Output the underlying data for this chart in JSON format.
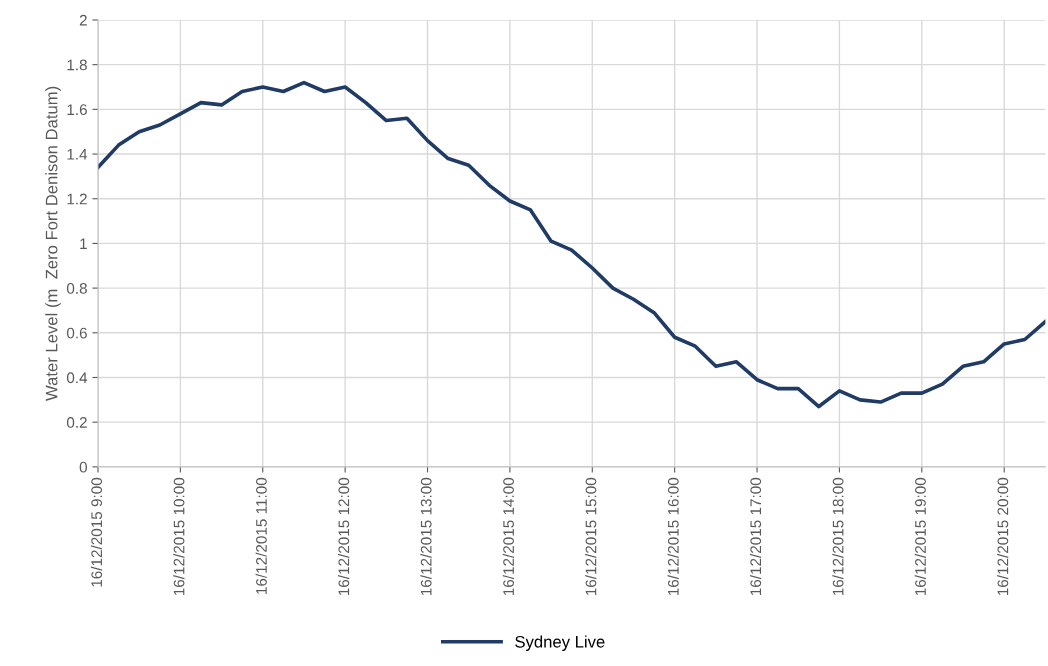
{
  "chart_data": {
    "type": "line",
    "ylabel": "Water Level (m  Zero Fort Denison Datum)",
    "x": [
      "2015-12-16T09:00",
      "2015-12-16T09:15",
      "2015-12-16T09:30",
      "2015-12-16T09:45",
      "2015-12-16T10:00",
      "2015-12-16T10:15",
      "2015-12-16T10:30",
      "2015-12-16T10:45",
      "2015-12-16T11:00",
      "2015-12-16T11:15",
      "2015-12-16T11:30",
      "2015-12-16T11:45",
      "2015-12-16T12:00",
      "2015-12-16T12:15",
      "2015-12-16T12:30",
      "2015-12-16T12:45",
      "2015-12-16T13:00",
      "2015-12-16T13:15",
      "2015-12-16T13:30",
      "2015-12-16T13:45",
      "2015-12-16T14:00",
      "2015-12-16T14:15",
      "2015-12-16T14:30",
      "2015-12-16T14:45",
      "2015-12-16T15:00",
      "2015-12-16T15:15",
      "2015-12-16T15:30",
      "2015-12-16T15:45",
      "2015-12-16T16:00",
      "2015-12-16T16:15",
      "2015-12-16T16:30",
      "2015-12-16T16:45",
      "2015-12-16T17:00",
      "2015-12-16T17:15",
      "2015-12-16T17:30",
      "2015-12-16T17:45",
      "2015-12-16T18:00",
      "2015-12-16T18:15",
      "2015-12-16T18:30",
      "2015-12-16T18:45",
      "2015-12-16T19:00",
      "2015-12-16T19:15",
      "2015-12-16T19:30",
      "2015-12-16T19:45",
      "2015-12-16T20:00",
      "2015-12-16T20:15",
      "2015-12-16T20:30"
    ],
    "series": [
      {
        "name": "Sydney Live",
        "color": "#1f3b66",
        "values": [
          1.34,
          1.44,
          1.5,
          1.53,
          1.58,
          1.63,
          1.62,
          1.68,
          1.7,
          1.68,
          1.72,
          1.68,
          1.7,
          1.63,
          1.55,
          1.56,
          1.46,
          1.38,
          1.35,
          1.26,
          1.19,
          1.15,
          1.01,
          0.97,
          0.89,
          0.8,
          0.75,
          0.69,
          0.58,
          0.54,
          0.45,
          0.47,
          0.39,
          0.35,
          0.35,
          0.27,
          0.34,
          0.3,
          0.29,
          0.33,
          0.33,
          0.37,
          0.45,
          0.47,
          0.55,
          0.57,
          0.65
        ]
      }
    ],
    "xlim": [
      "2015-12-16T09:00",
      "2015-12-16T20:30"
    ],
    "xticks": [
      {
        "value": "2015-12-16T09:00",
        "label": "16/12/2015 9:00"
      },
      {
        "value": "2015-12-16T10:00",
        "label": "16/12/2015 10:00"
      },
      {
        "value": "2015-12-16T11:00",
        "label": "16/12/2015 11:00"
      },
      {
        "value": "2015-12-16T12:00",
        "label": "16/12/2015 12:00"
      },
      {
        "value": "2015-12-16T13:00",
        "label": "16/12/2015 13:00"
      },
      {
        "value": "2015-12-16T14:00",
        "label": "16/12/2015 14:00"
      },
      {
        "value": "2015-12-16T15:00",
        "label": "16/12/2015 15:00"
      },
      {
        "value": "2015-12-16T16:00",
        "label": "16/12/2015 16:00"
      },
      {
        "value": "2015-12-16T17:00",
        "label": "16/12/2015 17:00"
      },
      {
        "value": "2015-12-16T18:00",
        "label": "16/12/2015 18:00"
      },
      {
        "value": "2015-12-16T19:00",
        "label": "16/12/2015 19:00"
      },
      {
        "value": "2015-12-16T20:00",
        "label": "16/12/2015 20:00"
      }
    ],
    "ylim": [
      0,
      2
    ],
    "yticks": [
      0,
      0.2,
      0.4,
      0.6,
      0.8,
      1,
      1.2,
      1.4,
      1.6,
      1.8,
      2
    ],
    "grid": true,
    "legend": "bottom",
    "marker": "none",
    "line_style": "solid"
  }
}
